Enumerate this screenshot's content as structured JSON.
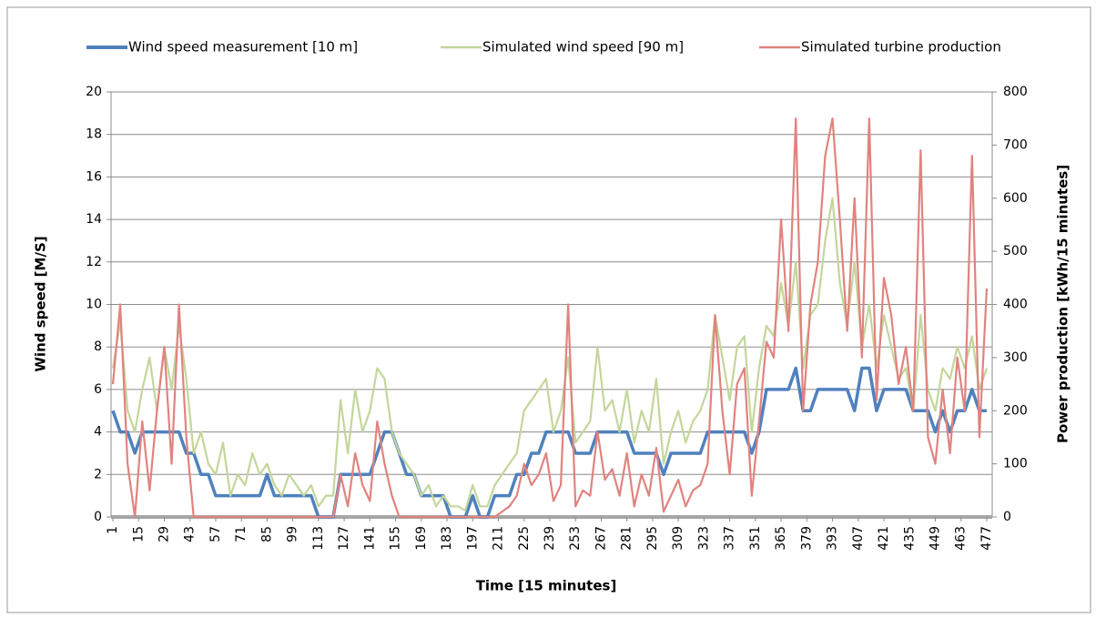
{
  "chart_data": {
    "type": "line",
    "xlabel": "Time [15 minutes]",
    "ylabel": "Wind speed [M/S]",
    "y2label": "Power production [kWh/15 minutes]",
    "x": [
      1,
      5,
      9,
      13,
      17,
      21,
      25,
      29,
      33,
      37,
      41,
      45,
      49,
      53,
      57,
      61,
      65,
      69,
      73,
      77,
      81,
      85,
      89,
      93,
      97,
      101,
      105,
      109,
      113,
      117,
      121,
      125,
      129,
      133,
      137,
      141,
      145,
      149,
      153,
      157,
      161,
      165,
      169,
      173,
      177,
      181,
      185,
      189,
      193,
      197,
      201,
      205,
      209,
      213,
      217,
      221,
      225,
      229,
      233,
      237,
      241,
      245,
      249,
      253,
      257,
      261,
      265,
      269,
      273,
      277,
      281,
      285,
      289,
      293,
      297,
      301,
      305,
      309,
      313,
      317,
      321,
      325,
      329,
      333,
      337,
      341,
      345,
      349,
      353,
      357,
      361,
      365,
      369,
      373,
      377,
      381,
      385,
      389,
      393,
      397,
      401,
      405,
      409,
      413,
      417,
      421,
      425,
      429,
      433,
      437,
      441,
      445,
      449,
      453,
      457,
      461,
      465,
      469,
      473,
      477
    ],
    "xlim": [
      0,
      480
    ],
    "xticks": [
      1,
      15,
      29,
      43,
      57,
      71,
      85,
      99,
      113,
      127,
      141,
      155,
      169,
      183,
      197,
      211,
      225,
      239,
      253,
      267,
      281,
      295,
      309,
      323,
      337,
      351,
      365,
      379,
      393,
      407,
      421,
      435,
      449,
      463,
      477
    ],
    "ylim": [
      0,
      20
    ],
    "yticks": [
      0,
      2,
      4,
      6,
      8,
      10,
      12,
      14,
      16,
      18,
      20
    ],
    "y2lim": [
      0,
      800
    ],
    "y2ticks": [
      0,
      100,
      200,
      300,
      400,
      500,
      600,
      700,
      800
    ],
    "grid": true,
    "legend": "top",
    "series": [
      {
        "name": "Wind speed measurement [10 m]",
        "color": "#4f81bd",
        "values": [
          5,
          4,
          4,
          3,
          4,
          4,
          4,
          4,
          4,
          4,
          3,
          3,
          2,
          2,
          1,
          1,
          1,
          1,
          1,
          1,
          1,
          2,
          1,
          1,
          1,
          1,
          1,
          1,
          0,
          0,
          0,
          2,
          2,
          2,
          2,
          2,
          3,
          4,
          4,
          3,
          2,
          2,
          1,
          1,
          1,
          1,
          0,
          0,
          0,
          1,
          0,
          0,
          1,
          1,
          1,
          2,
          2,
          3,
          3,
          4,
          4,
          4,
          4,
          3,
          3,
          3,
          4,
          4,
          4,
          4,
          4,
          3,
          3,
          3,
          3,
          2,
          3,
          3,
          3,
          3,
          3,
          4,
          4,
          4,
          4,
          4,
          4,
          3,
          4,
          6,
          6,
          6,
          6,
          7,
          5,
          5,
          6,
          6,
          6,
          6,
          6,
          5,
          7,
          7,
          5,
          6,
          6,
          6,
          6,
          5,
          5,
          5,
          4,
          5,
          4,
          5,
          5,
          6,
          5,
          5
        ]
      },
      {
        "name": "Simulated wind speed [90 m]",
        "color": "#c3d69b",
        "values": [
          7,
          9.2,
          5,
          4,
          6,
          7.5,
          5,
          8,
          6,
          9,
          6.5,
          3,
          4,
          2.5,
          2,
          3.5,
          1,
          2,
          1.5,
          3,
          2,
          2.5,
          1.5,
          1,
          2,
          1.5,
          1,
          1.5,
          0.5,
          1,
          1,
          5.5,
          3,
          6,
          4,
          5,
          7,
          6.5,
          4,
          3,
          2.5,
          2,
          1,
          1.5,
          0.5,
          1,
          0.5,
          0.5,
          0.3,
          1.5,
          0.5,
          0.5,
          1.5,
          2,
          2.5,
          3,
          5,
          5.5,
          6,
          6.5,
          4,
          5,
          7.5,
          3.5,
          4,
          4.5,
          8,
          5,
          5.5,
          4,
          6,
          3.5,
          5,
          4,
          6.5,
          2.5,
          4,
          5,
          3.5,
          4.5,
          5,
          6,
          9.5,
          7.5,
          5.5,
          8,
          8.5,
          4,
          7,
          9,
          8.5,
          11,
          9,
          12,
          7,
          9.5,
          10,
          13,
          15,
          11,
          9,
          12,
          8,
          10,
          7,
          9.5,
          8,
          6.5,
          7,
          5,
          9.5,
          6,
          5,
          7,
          6.5,
          8,
          7,
          8.5,
          6,
          7
        ]
      },
      {
        "name": "Simulated turbine production",
        "color": "#e0837f",
        "axis": "y2",
        "values": [
          250,
          400,
          100,
          0,
          180,
          50,
          200,
          320,
          100,
          400,
          150,
          0,
          0,
          0,
          0,
          0,
          0,
          0,
          0,
          0,
          0,
          0,
          0,
          0,
          0,
          0,
          0,
          0,
          0,
          0,
          0,
          80,
          20,
          120,
          60,
          30,
          180,
          100,
          40,
          0,
          0,
          0,
          0,
          0,
          0,
          0,
          0,
          0,
          0,
          0,
          0,
          0,
          0,
          10,
          20,
          40,
          100,
          60,
          80,
          120,
          30,
          60,
          400,
          20,
          50,
          40,
          160,
          70,
          90,
          40,
          120,
          20,
          80,
          40,
          130,
          10,
          40,
          70,
          20,
          50,
          60,
          100,
          380,
          200,
          80,
          250,
          280,
          40,
          180,
          330,
          300,
          560,
          350,
          750,
          200,
          400,
          480,
          680,
          750,
          560,
          350,
          600,
          300,
          750,
          220,
          450,
          380,
          250,
          320,
          200,
          690,
          150,
          100,
          240,
          120,
          300,
          200,
          680,
          150,
          430
        ]
      }
    ]
  }
}
